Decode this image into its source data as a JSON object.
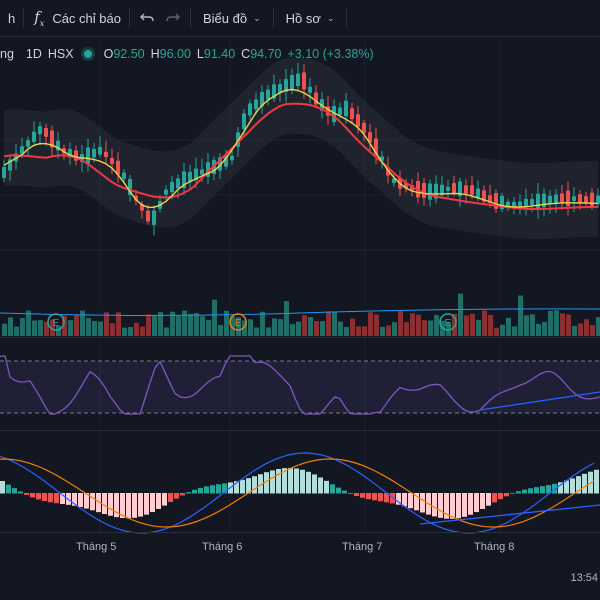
{
  "toolbar": {
    "cut_label": "h",
    "indicators_label": "Các chỉ báo",
    "chart_label": "Biểu đồ",
    "profile_label": "Hồ sơ"
  },
  "legend": {
    "symbol_partial": "ng",
    "interval": "1D",
    "exchange": "HSX",
    "open_key": "O",
    "open": "92.50",
    "high_key": "H",
    "high": "96.00",
    "low_key": "L",
    "low": "91.40",
    "close_key": "C",
    "close": "94.70",
    "change": "+3.10 (+3.38%)"
  },
  "markers": {
    "label": "E"
  },
  "x_axis": [
    "Tháng 5",
    "Tháng 6",
    "Tháng 7",
    "Tháng 8"
  ],
  "clock": "13:54",
  "colors": {
    "up": "#26a69a",
    "down": "#ef5350",
    "ma_fast": "#e8d44d",
    "ma_slow": "#f23645",
    "rsi": "#7e57c2",
    "macd": "#2962ff",
    "signal": "#f57c00"
  },
  "chart_data": {
    "type": "candlestick",
    "last_ohlc": {
      "open": 92.5,
      "high": 96.0,
      "low": 91.4,
      "close": 94.7
    },
    "indicators": [
      "Volume",
      "RSI",
      "MACD",
      "MA",
      "Bollinger Bands"
    ],
    "legend_placement": "top-left"
  }
}
